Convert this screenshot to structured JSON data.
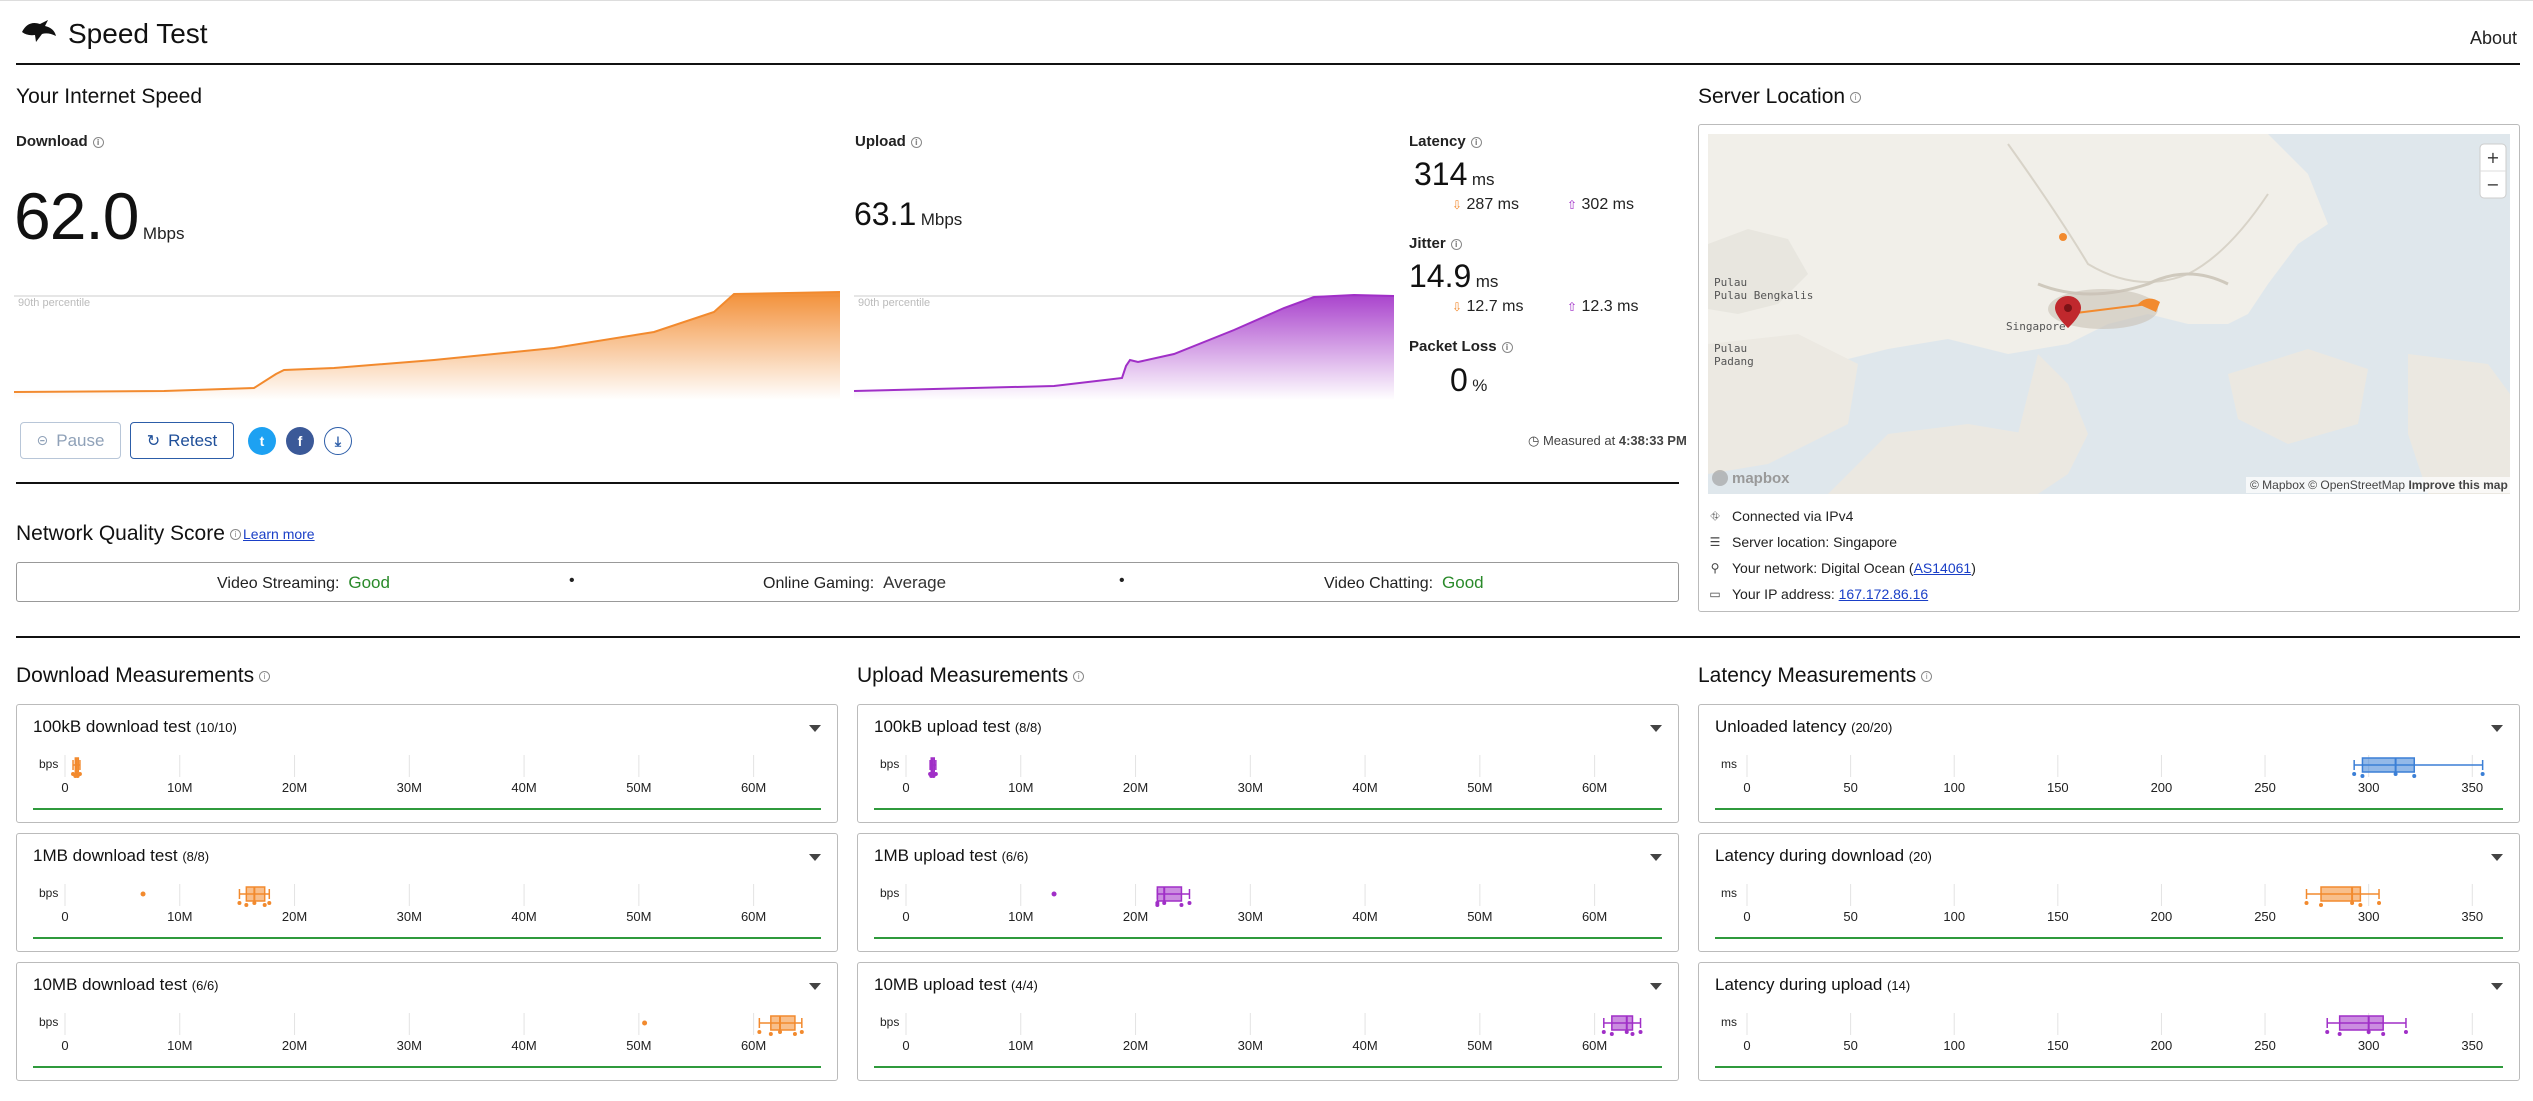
{
  "app": {
    "title": "Speed Test",
    "about": "About"
  },
  "speed": {
    "title": "Your Internet Speed",
    "download": {
      "label": "Download",
      "value": "62.0",
      "unit": "Mbps",
      "percentile": "90th percentile"
    },
    "upload": {
      "label": "Upload",
      "value": "63.1",
      "unit": "Mbps",
      "percentile": "90th percentile"
    },
    "latency": {
      "label": "Latency",
      "value": "314",
      "unit": "ms",
      "down": "287",
      "up": "302",
      "sub_unit": "ms"
    },
    "jitter": {
      "label": "Jitter",
      "value": "14.9",
      "unit": "ms",
      "down": "12.7",
      "up": "12.3",
      "sub_unit": "ms"
    },
    "packet_loss": {
      "label": "Packet Loss",
      "value": "0",
      "unit": "%"
    },
    "pause_label": "Pause",
    "retest_label": "Retest",
    "measured_prefix": "Measured at",
    "measured_time": "4:38:33 PM"
  },
  "quality": {
    "title": "Network Quality Score",
    "learn_more": "Learn more",
    "items": [
      {
        "label": "Video Streaming:",
        "value": "Good"
      },
      {
        "label": "Online Gaming:",
        "value": "Average"
      },
      {
        "label": "Video Chatting:",
        "value": "Good"
      }
    ],
    "separator": "•"
  },
  "server": {
    "title": "Server Location",
    "map_labels": [
      "Pulau Bengkalis",
      "Singapore",
      "Pulau Padang"
    ],
    "map_logo": "mapbox",
    "attribution": [
      "© Mapbox",
      "© OpenStreetMap",
      "Improve this map"
    ],
    "zoom_in": "+",
    "zoom_out": "−",
    "connected": "Connected via IPv4",
    "location": "Server location: Singapore",
    "network_prefix": "Your network: Digital Ocean (",
    "network_asn": "AS14061",
    "network_suffix": ")",
    "ip_prefix": "Your IP address:",
    "ip": "167.172.86.16"
  },
  "measurements": {
    "download": {
      "title": "Download Measurements",
      "tests": [
        {
          "name": "100kB download test",
          "count": "(10/10)",
          "min": 0.7,
          "q1": 0.9,
          "median": 1.0,
          "q3": 1.1,
          "max": 1.3,
          "outliers": []
        },
        {
          "name": "1MB download test",
          "count": "(8/8)",
          "min": 15.2,
          "q1": 15.8,
          "median": 16.5,
          "q3": 17.4,
          "max": 17.8,
          "outliers": [
            6.8
          ]
        },
        {
          "name": "10MB download test",
          "count": "(6/6)",
          "min": 60.5,
          "q1": 61.5,
          "median": 62.3,
          "q3": 63.6,
          "max": 64.2,
          "outliers": [
            50.5
          ]
        }
      ],
      "axis_unit": "bps",
      "ticks": [
        "0",
        "10M",
        "20M",
        "30M",
        "40M",
        "50M",
        "60M"
      ],
      "color": "#f28a2e"
    },
    "upload": {
      "title": "Upload Measurements",
      "tests": [
        {
          "name": "100kB upload test",
          "count": "(8/8)",
          "min": 2.1,
          "q1": 2.2,
          "median": 2.3,
          "q3": 2.4,
          "max": 2.6,
          "outliers": []
        },
        {
          "name": "1MB upload test",
          "count": "(6/6)",
          "min": 21.9,
          "q1": 21.9,
          "median": 22.5,
          "q3": 24.0,
          "max": 24.7,
          "outliers": [
            12.9
          ]
        },
        {
          "name": "10MB upload test",
          "count": "(4/4)",
          "min": 60.8,
          "q1": 61.5,
          "median": 62.8,
          "q3": 63.3,
          "max": 64.0,
          "outliers": []
        }
      ],
      "axis_unit": "bps",
      "ticks": [
        "0",
        "10M",
        "20M",
        "30M",
        "40M",
        "50M",
        "60M"
      ],
      "color": "#a02fc7"
    },
    "latency": {
      "title": "Latency Measurements",
      "tests": [
        {
          "name": "Unloaded latency",
          "count": "(20/20)",
          "min": 293,
          "q1": 297,
          "median": 313,
          "q3": 322,
          "max": 355,
          "outliers": [],
          "color": "#3b7fd6"
        },
        {
          "name": "Latency during download",
          "count": "(20)",
          "min": 270,
          "q1": 277,
          "median": 292,
          "q3": 296,
          "max": 305,
          "outliers": [],
          "color": "#f28a2e"
        },
        {
          "name": "Latency during upload",
          "count": "(14)",
          "min": 280,
          "q1": 286,
          "median": 300,
          "q3": 307,
          "max": 318,
          "outliers": [],
          "color": "#a02fc7"
        }
      ],
      "axis_unit": "ms",
      "ticks": [
        "0",
        "50",
        "100",
        "150",
        "200",
        "250",
        "300",
        "350"
      ]
    }
  },
  "colors": {
    "download": "#f28a2e",
    "upload": "#a02fc7",
    "good": "#2a8a2a",
    "link": "#1a3fc7",
    "twitter": "#1da1f2",
    "facebook": "#3b5998",
    "download_btn": "#2c5da8"
  }
}
